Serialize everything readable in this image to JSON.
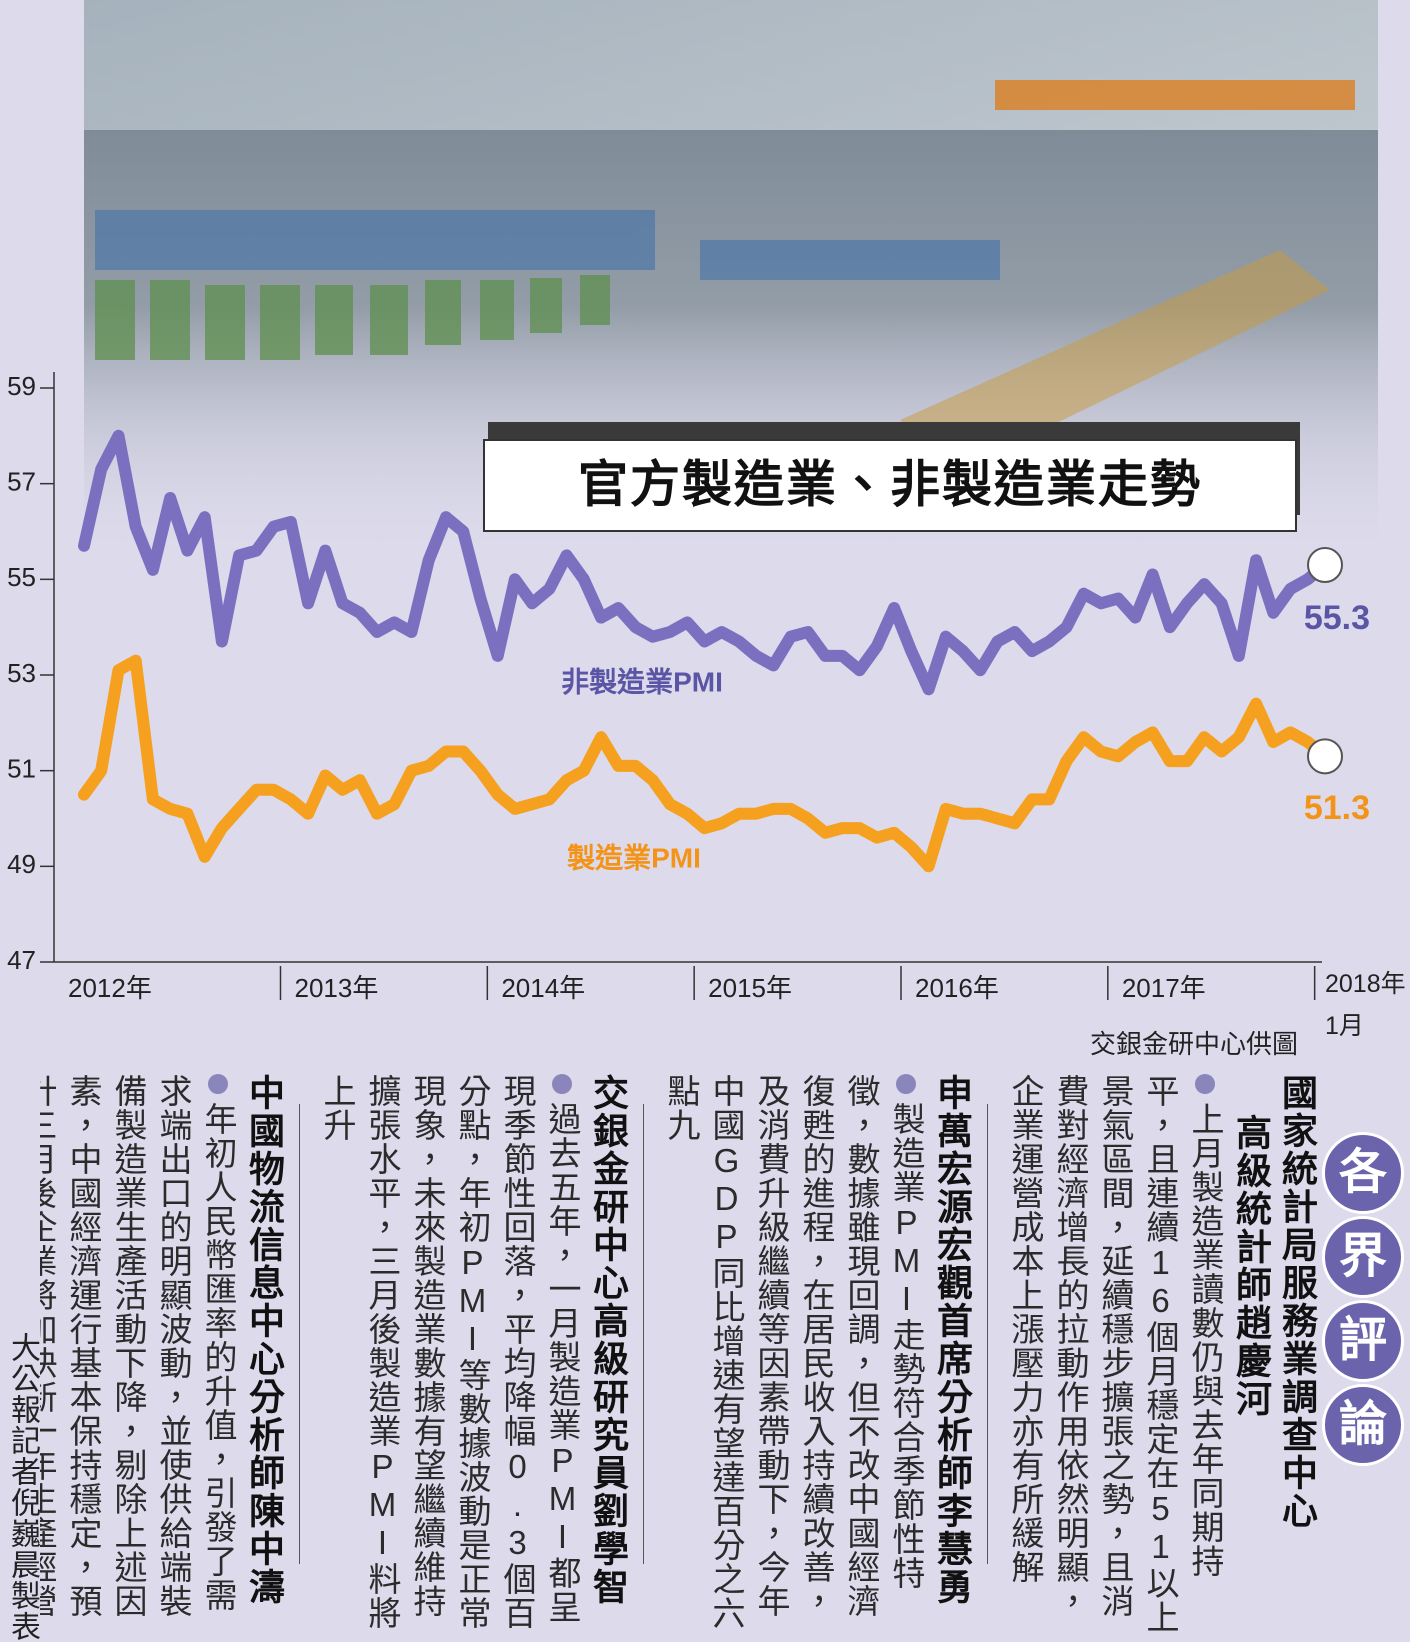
{
  "chart_data": {
    "type": "line",
    "title": "官方製造業、非製造業走勢",
    "source": "交銀金研中心供圖",
    "categories": [
      "2012年",
      null,
      null,
      null,
      null,
      null,
      null,
      null,
      null,
      null,
      null,
      null,
      "2013年",
      null,
      null,
      null,
      null,
      null,
      null,
      null,
      null,
      null,
      null,
      null,
      "2014年",
      null,
      null,
      null,
      null,
      null,
      null,
      null,
      null,
      null,
      null,
      null,
      "2015年",
      null,
      null,
      null,
      null,
      null,
      null,
      null,
      null,
      null,
      null,
      null,
      "2016年",
      null,
      null,
      null,
      null,
      null,
      null,
      null,
      null,
      null,
      null,
      null,
      "2017年",
      null,
      null,
      null,
      null,
      null,
      null,
      null,
      null,
      null,
      null,
      null,
      "2018年1月"
    ],
    "series": [
      {
        "name": "非製造業PMI",
        "color": "#7b70c0",
        "label_color": "#5b55a5",
        "values": [
          55.7,
          57.3,
          58.0,
          56.1,
          55.2,
          56.7,
          55.6,
          56.3,
          53.7,
          55.5,
          55.6,
          56.1,
          56.2,
          54.5,
          55.6,
          54.5,
          54.3,
          53.9,
          54.1,
          53.9,
          55.4,
          56.3,
          56.0,
          54.6,
          53.4,
          55.0,
          54.5,
          54.8,
          55.5,
          55.0,
          54.2,
          54.4,
          54.0,
          53.8,
          53.9,
          54.1,
          53.7,
          53.9,
          53.7,
          53.4,
          53.2,
          53.8,
          53.9,
          53.4,
          53.4,
          53.1,
          53.6,
          54.4,
          53.5,
          52.7,
          53.8,
          53.5,
          53.1,
          53.7,
          53.9,
          53.5,
          53.7,
          54.0,
          54.7,
          54.5,
          54.6,
          54.2,
          55.1,
          54.0,
          54.5,
          54.9,
          54.5,
          53.4,
          55.4,
          54.3,
          54.8,
          55.0,
          55.3
        ]
      },
      {
        "name": "製造業PMI",
        "color": "#f5a01e",
        "label_color": "#f39418",
        "values": [
          50.5,
          51.0,
          53.1,
          53.3,
          50.4,
          50.2,
          50.1,
          49.2,
          49.8,
          50.2,
          50.6,
          50.6,
          50.4,
          50.1,
          50.9,
          50.6,
          50.8,
          50.1,
          50.3,
          51.0,
          51.1,
          51.4,
          51.4,
          51.0,
          50.5,
          50.2,
          50.3,
          50.4,
          50.8,
          51.0,
          51.7,
          51.1,
          51.1,
          50.8,
          50.3,
          50.1,
          49.8,
          49.9,
          50.1,
          50.1,
          50.2,
          50.2,
          50.0,
          49.7,
          49.8,
          49.8,
          49.6,
          49.7,
          49.4,
          49.0,
          50.2,
          50.1,
          50.1,
          50.0,
          49.9,
          50.4,
          50.4,
          51.2,
          51.7,
          51.4,
          51.3,
          51.6,
          51.8,
          51.2,
          51.2,
          51.7,
          51.4,
          51.7,
          52.4,
          51.6,
          51.8,
          51.6,
          51.3
        ]
      }
    ],
    "ylim": [
      47,
      59
    ],
    "yticks": [
      47,
      49,
      51,
      53,
      55,
      57,
      59
    ]
  },
  "comments": {
    "badge": [
      "各",
      "界",
      "評",
      "論"
    ],
    "sections": [
      {
        "heading": [
          "國家統計局服務業調查中心",
          "高級統計師趙慶河"
        ],
        "body": "上月製造業讀數仍與去年同期持平，且連續16個月穩定在51以上景氣區間，延續穩步擴張之勢，且消費對經濟增長的拉動作用依然明顯，企業運營成本上漲壓力亦有所緩解"
      },
      {
        "heading": [
          "申萬宏源宏觀首席分析師李慧勇"
        ],
        "body": "製造業PMI走勢符合季節性特徵，數據雖現回調，但不改中國經濟復甦的進程，在居民收入持續改善，及消費升級繼續等因素帶動下，今年中國GDP同比增速有望達百分之六點九"
      },
      {
        "heading": [
          "交銀金研中心高級研究員劉學智"
        ],
        "body": "過去五年，一月製造業PMI都呈現季節性回落，平均降幅0.3個百分點，年初PMI等數據波動是正常現象，未來製造業數據有望繼續維持擴張水平，三月後製造業PMI料將上升"
      },
      {
        "heading": [
          "中國物流信息中心分析師陳中濤"
        ],
        "body": "年初人民幣匯率的升值，引發了需求端出口的明顯波動，並使供給端裝備製造業生產活動下降，剔除上述因素，中國經濟運行基本保持穩定，預計三月後企業將加快新一年生產經營布局"
      }
    ],
    "credit": "大公報記者倪巍晨製表"
  }
}
